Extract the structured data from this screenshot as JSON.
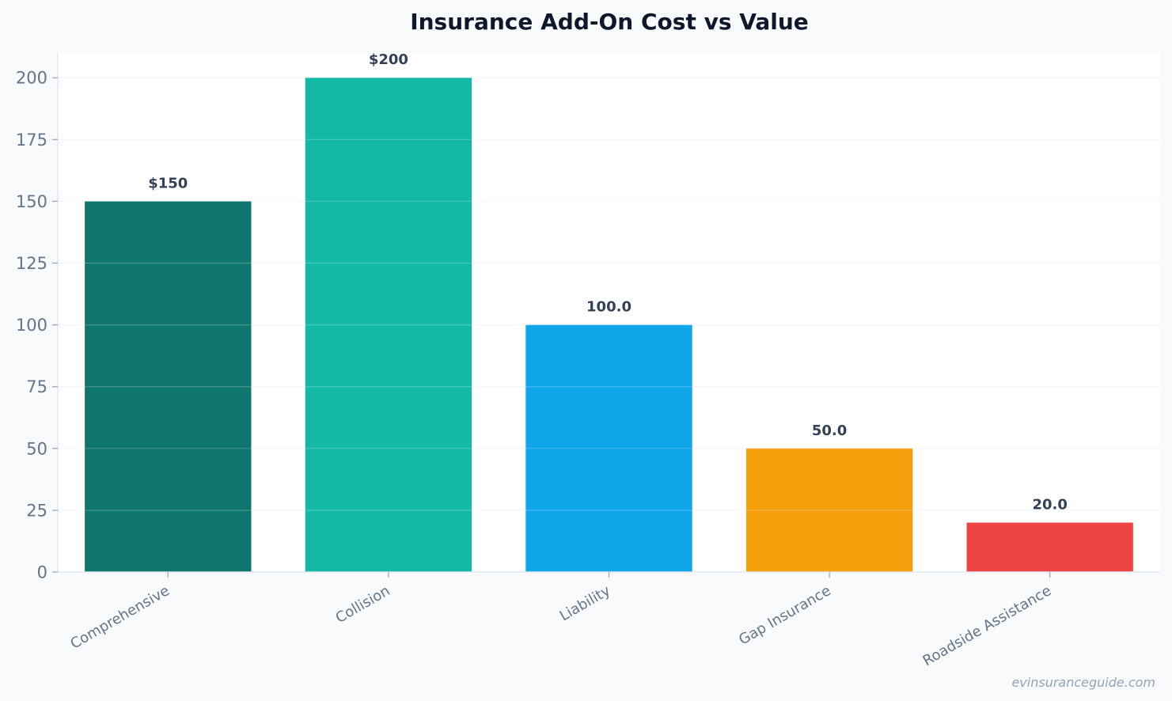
{
  "chart_data": {
    "type": "bar",
    "title": "Insurance Add-On Cost vs Value",
    "xlabel": "",
    "ylabel": "",
    "categories": [
      "Comprehensive",
      "Collision",
      "Liability",
      "Gap Insurance",
      "Roadside Assistance"
    ],
    "values": [
      150,
      200,
      100,
      50,
      20
    ],
    "data_labels": [
      "$150",
      "$200",
      "100.0",
      "50.0",
      "20.0"
    ],
    "colors": [
      "#0f766e",
      "#14b8a6",
      "#0ea5e9",
      "#f59e0b",
      "#ef4444"
    ],
    "ylim": [
      0,
      210
    ],
    "yticks": [
      0,
      25,
      50,
      75,
      100,
      125,
      150,
      175,
      200
    ],
    "grid": true,
    "legend": "none"
  },
  "watermark": "evinsuranceguide.com"
}
